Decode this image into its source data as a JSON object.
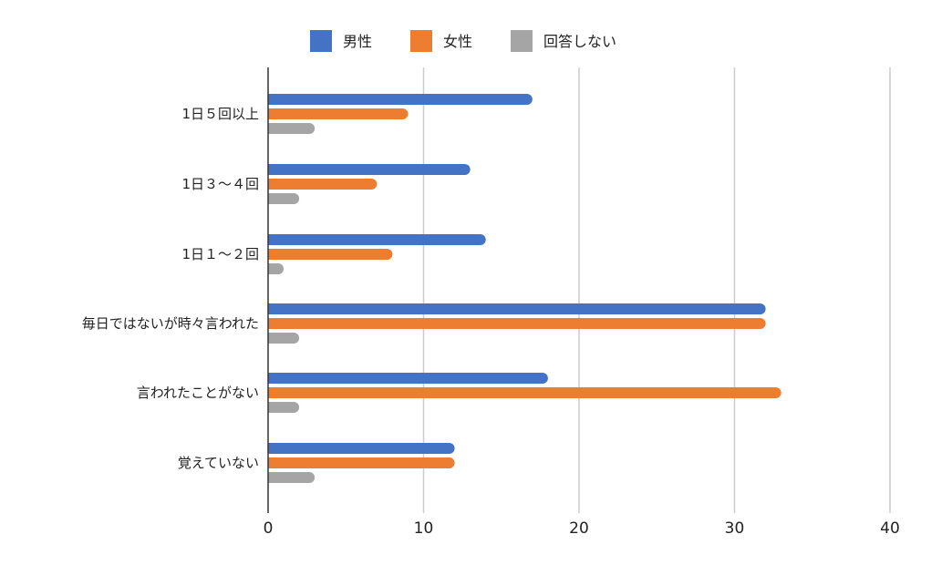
{
  "chart_data": {
    "type": "bar",
    "orientation": "horizontal",
    "title": "",
    "xlabel": "",
    "ylabel": "",
    "categories": [
      "1日５回以上",
      "1日３〜４回",
      "1日１〜２回",
      "毎日ではないが時々言われた",
      "言われたことがない",
      "覚えていない"
    ],
    "series": [
      {
        "name": "男性",
        "color": "#4472C4",
        "values": [
          17,
          13,
          14,
          32,
          18,
          12
        ]
      },
      {
        "name": "女性",
        "color": "#ED7D31",
        "values": [
          9,
          7,
          8,
          32,
          33,
          12
        ]
      },
      {
        "name": "回答しない",
        "color": "#A5A5A5",
        "values": [
          3,
          2,
          1,
          2,
          2,
          3
        ]
      }
    ],
    "xlim": [
      0,
      40
    ],
    "xticks": [
      0,
      10,
      20,
      30,
      40
    ],
    "grid": "vertical",
    "legend": "top-center"
  }
}
